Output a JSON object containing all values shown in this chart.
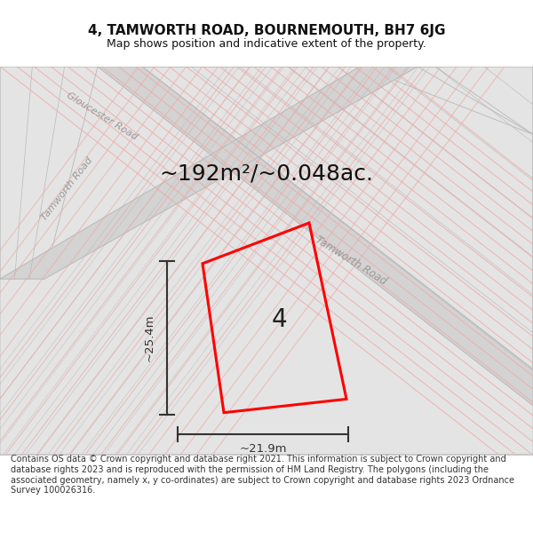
{
  "title": "4, TAMWORTH ROAD, BOURNEMOUTH, BH7 6JG",
  "subtitle": "Map shows position and indicative extent of the property.",
  "area_text": "~192m²/~0.048ac.",
  "dimension_h": "~25.4m",
  "dimension_w": "~21.9m",
  "plot_label": "4",
  "footer": "Contains OS data © Crown copyright and database right 2021. This information is subject to Crown copyright and database rights 2023 and is reproduced with the permission of HM Land Registry. The polygons (including the associated geometry, namely x, y co-ordinates) are subject to Crown copyright and database rights 2023 Ordnance Survey 100026316.",
  "map_bg": "#f0f0f0",
  "c_road": "#d3d3d3",
  "c_block": "#e4e4e4",
  "c_border": "#b8b8b8",
  "c_pink": "#f0a8a8",
  "plot_color": "#ff0000",
  "dim_color": "#333333",
  "title_color": "#111111",
  "footer_color": "#333333",
  "road_label_color": "#999999",
  "figsize": [
    6.0,
    6.25
  ],
  "dpi": 100
}
